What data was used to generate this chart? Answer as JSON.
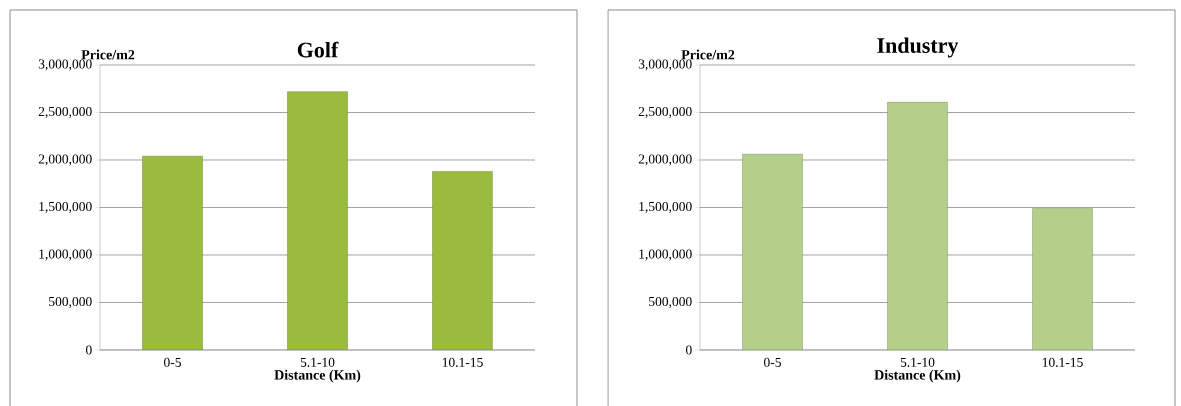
{
  "chart_data": [
    {
      "type": "bar",
      "title": "Golf",
      "xlabel": "Distance (Km)",
      "ylabel": "Price/m2",
      "categories": [
        "0-5",
        "5.1-10",
        "10.1-15"
      ],
      "values": [
        2040000,
        2720000,
        1880000
      ],
      "color": "#9bbb3f",
      "ylim": [
        0,
        3000000
      ],
      "yticks": [
        {
          "value": 0,
          "label": "0"
        },
        {
          "value": 500000,
          "label": "500,000"
        },
        {
          "value": 1000000,
          "label": "1,000,000"
        },
        {
          "value": 1500000,
          "label": "1,500,000"
        },
        {
          "value": 2000000,
          "label": "2,000,000"
        },
        {
          "value": 2500000,
          "label": "2,500,000"
        },
        {
          "value": 3000000,
          "label": "3,000,000"
        }
      ],
      "grid": "y"
    },
    {
      "type": "bar",
      "title": "Industry",
      "xlabel": "Distance (Km)",
      "ylabel": "Price/m2",
      "categories": [
        "0-5",
        "5.1-10",
        "10.1-15"
      ],
      "values": [
        2060000,
        2610000,
        1490000
      ],
      "color": "#b4cf8a",
      "ylim": [
        0,
        3000000
      ],
      "yticks": [
        {
          "value": 0,
          "label": "0"
        },
        {
          "value": 500000,
          "label": "500,000"
        },
        {
          "value": 1000000,
          "label": "1,000,000"
        },
        {
          "value": 1500000,
          "label": "1,500,000"
        },
        {
          "value": 2000000,
          "label": "2,000,000"
        },
        {
          "value": 2500000,
          "label": "2,500,000"
        },
        {
          "value": 3000000,
          "label": "3,000,000"
        }
      ],
      "grid": "y"
    }
  ]
}
